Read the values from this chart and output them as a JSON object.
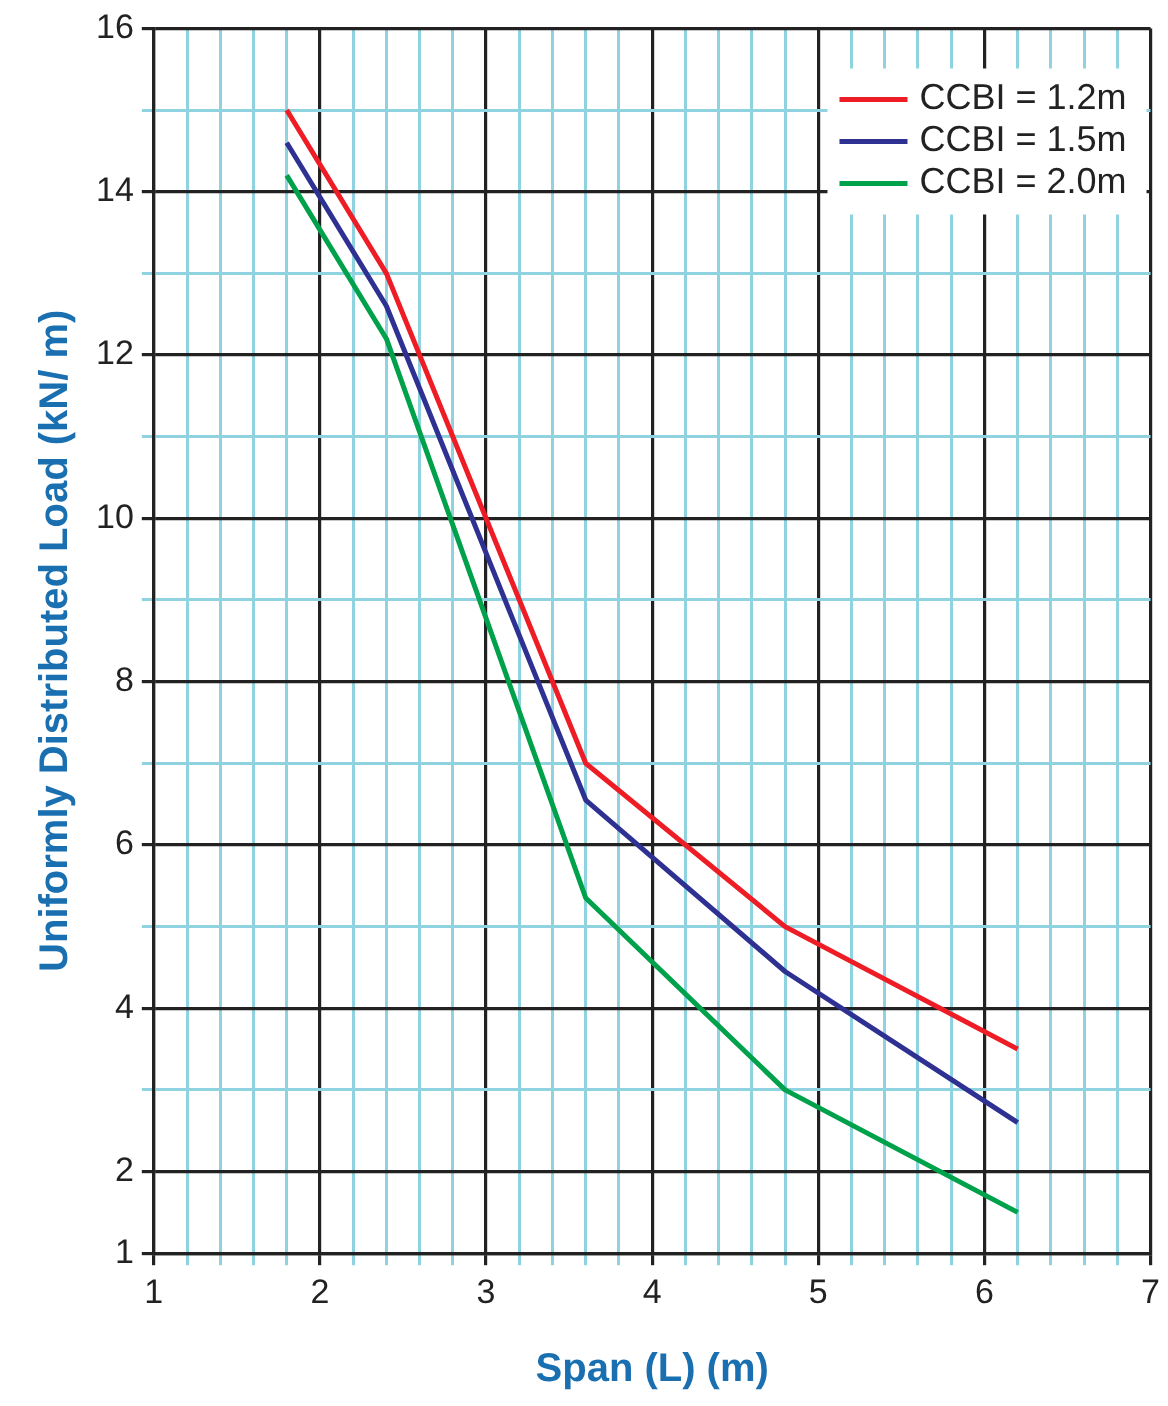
{
  "chart_data": {
    "type": "line",
    "xlabel": "Span (L) (m)",
    "ylabel": "Uniformly Distributed Load (kN/ m)",
    "x": [
      1.8,
      2.4,
      3.6,
      4.8,
      6.2
    ],
    "series": [
      {
        "name": "CCBI = 1.2m",
        "color": "#ee1c25",
        "values": [
          15,
          13,
          7,
          5,
          3.5
        ]
      },
      {
        "name": "CCBI = 1.5m",
        "color": "#2e3192",
        "values": [
          14.6,
          12.6,
          6.55,
          4.45,
          2.6
        ]
      },
      {
        "name": "CCBI = 2.0m",
        "color": "#00a14b",
        "values": [
          14.2,
          12.2,
          5.35,
          3.0,
          1.5
        ]
      }
    ],
    "xlim": [
      1,
      7
    ],
    "ylim": [
      1,
      16
    ],
    "xticks": [
      1,
      {
        "value": 1.2,
        "label": null
      },
      {
        "value": 1.4,
        "label": null
      },
      {
        "value": 1.6,
        "label": null
      },
      {
        "value": 1.8,
        "label": null
      },
      2,
      {
        "value": 2.2,
        "label": null
      },
      {
        "value": 2.4,
        "label": null
      },
      {
        "value": 2.6,
        "label": null
      },
      {
        "value": 2.8,
        "label": null
      },
      3,
      {
        "value": 3.2,
        "label": null
      },
      {
        "value": 3.4,
        "label": null
      },
      {
        "value": 3.6,
        "label": null
      },
      {
        "value": 3.8,
        "label": null
      },
      4,
      {
        "value": 4.2,
        "label": null
      },
      {
        "value": 4.4,
        "label": null
      },
      {
        "value": 4.6,
        "label": null
      },
      {
        "value": 4.8,
        "label": null
      },
      5,
      {
        "value": 5.2,
        "label": null
      },
      {
        "value": 5.4,
        "label": null
      },
      {
        "value": 5.6,
        "label": null
      },
      {
        "value": 5.8,
        "label": null
      },
      6,
      {
        "value": 6.2,
        "label": null
      },
      {
        "value": 6.4,
        "label": null
      },
      {
        "value": 6.6,
        "label": null
      },
      {
        "value": 6.8,
        "label": null
      },
      7
    ],
    "yticks": [
      1,
      2,
      {
        "value": 3,
        "label": null
      },
      4,
      {
        "value": 5,
        "label": null
      },
      6,
      {
        "value": 7,
        "label": null
      },
      8,
      {
        "value": 9,
        "label": null
      },
      10,
      {
        "value": 11,
        "label": null
      },
      12,
      {
        "value": 13,
        "label": null
      },
      14,
      {
        "value": 15,
        "label": null
      },
      16
    ],
    "grid": true,
    "legend": "top right",
    "marker": "none",
    "line_style": "solid"
  }
}
